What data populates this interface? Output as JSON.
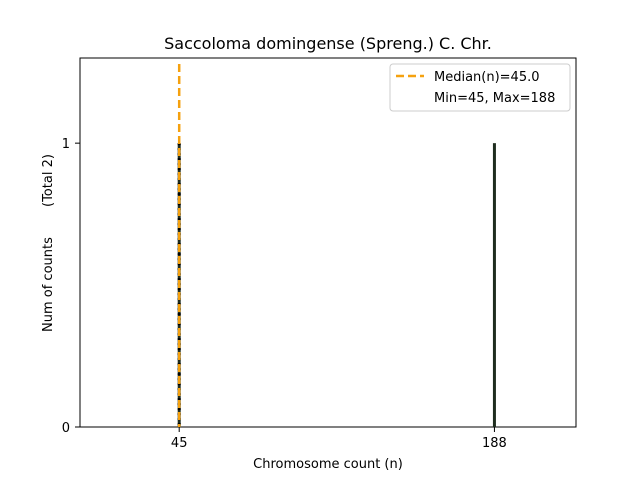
{
  "chart_data": {
    "type": "bar",
    "title": "Saccoloma domingense (Spreng.) C. Chr.",
    "xlabel": "Chromosome count (n)",
    "ylabel": "Num of counts",
    "ylabel_total": "(Total 2)",
    "x": [
      45,
      188
    ],
    "values": [
      1,
      1
    ],
    "xticks": [
      "45",
      "188"
    ],
    "yticks": [
      "0",
      "1"
    ],
    "xlim": [
      0,
      225
    ],
    "ylim": [
      0,
      1.3
    ],
    "grid": false,
    "median": 45.0,
    "legend": {
      "placement": "top-right",
      "median_label": "Median(n)=45.0",
      "range_label": "Min=45, Max=188"
    },
    "colors": {
      "bars": "#1f2d1f",
      "median_line": "#f5a10f",
      "bar_dots": "#000000"
    }
  }
}
